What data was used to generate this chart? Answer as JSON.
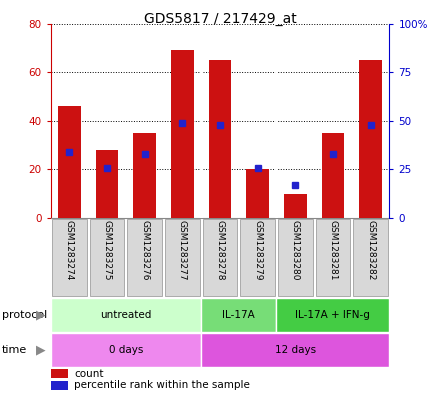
{
  "title": "GDS5817 / 217429_at",
  "samples": [
    "GSM1283274",
    "GSM1283275",
    "GSM1283276",
    "GSM1283277",
    "GSM1283278",
    "GSM1283279",
    "GSM1283280",
    "GSM1283281",
    "GSM1283282"
  ],
  "count_values": [
    46,
    28,
    35,
    69,
    65,
    20,
    10,
    35,
    65
  ],
  "percentile_values": [
    34,
    26,
    33,
    49,
    48,
    26,
    17,
    33,
    48
  ],
  "ylim_left": [
    0,
    80
  ],
  "ylim_right": [
    0,
    100
  ],
  "yticks_left": [
    0,
    20,
    40,
    60,
    80
  ],
  "ytick_labels_right": [
    "0",
    "25",
    "50",
    "75",
    "100%"
  ],
  "bar_color": "#cc1111",
  "dot_color": "#2222cc",
  "plot_bg": "#ffffff",
  "sample_box_color": "#d8d8d8",
  "sample_box_edge": "#aaaaaa",
  "left_axis_color": "#cc0000",
  "right_axis_color": "#0000cc",
  "prot_extents": [
    [
      0,
      4,
      "untreated",
      "#ccffcc"
    ],
    [
      4,
      6,
      "IL-17A",
      "#77dd77"
    ],
    [
      6,
      9,
      "IL-17A + IFN-g",
      "#44cc44"
    ]
  ],
  "time_extents": [
    [
      0,
      4,
      "0 days",
      "#ee88ee"
    ],
    [
      4,
      9,
      "12 days",
      "#dd55dd"
    ]
  ],
  "protocol_label": "protocol",
  "time_label": "time",
  "legend_count": "count",
  "legend_percentile": "percentile rank within the sample",
  "vline_positions": [
    3.5,
    5.5
  ],
  "vline_color": "#ffffff"
}
